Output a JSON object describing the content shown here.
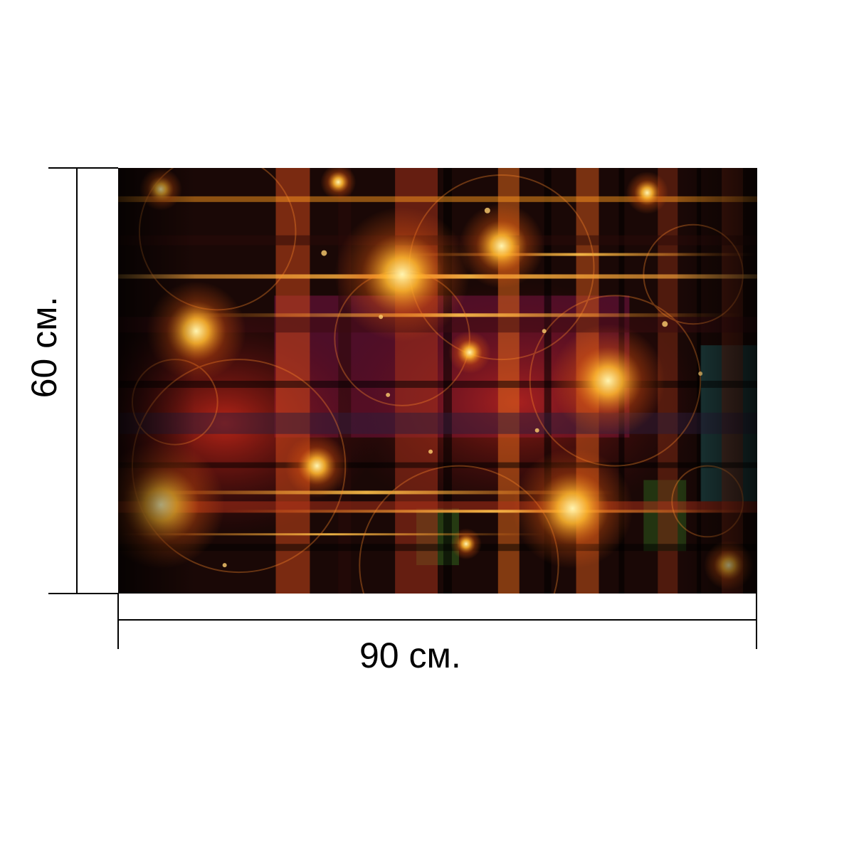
{
  "dimensions": {
    "width_label": "90 см.",
    "height_label": "60 см."
  },
  "colors": {
    "background": "#ffffff",
    "art_base": "#0d0504",
    "glow_orange": "#ff9a1f",
    "glow_yellow": "#ffd54a",
    "deep_red": "#b0161c",
    "magenta": "#7a1446",
    "teal": "#1f6c6e",
    "green": "#2f6b1e"
  }
}
